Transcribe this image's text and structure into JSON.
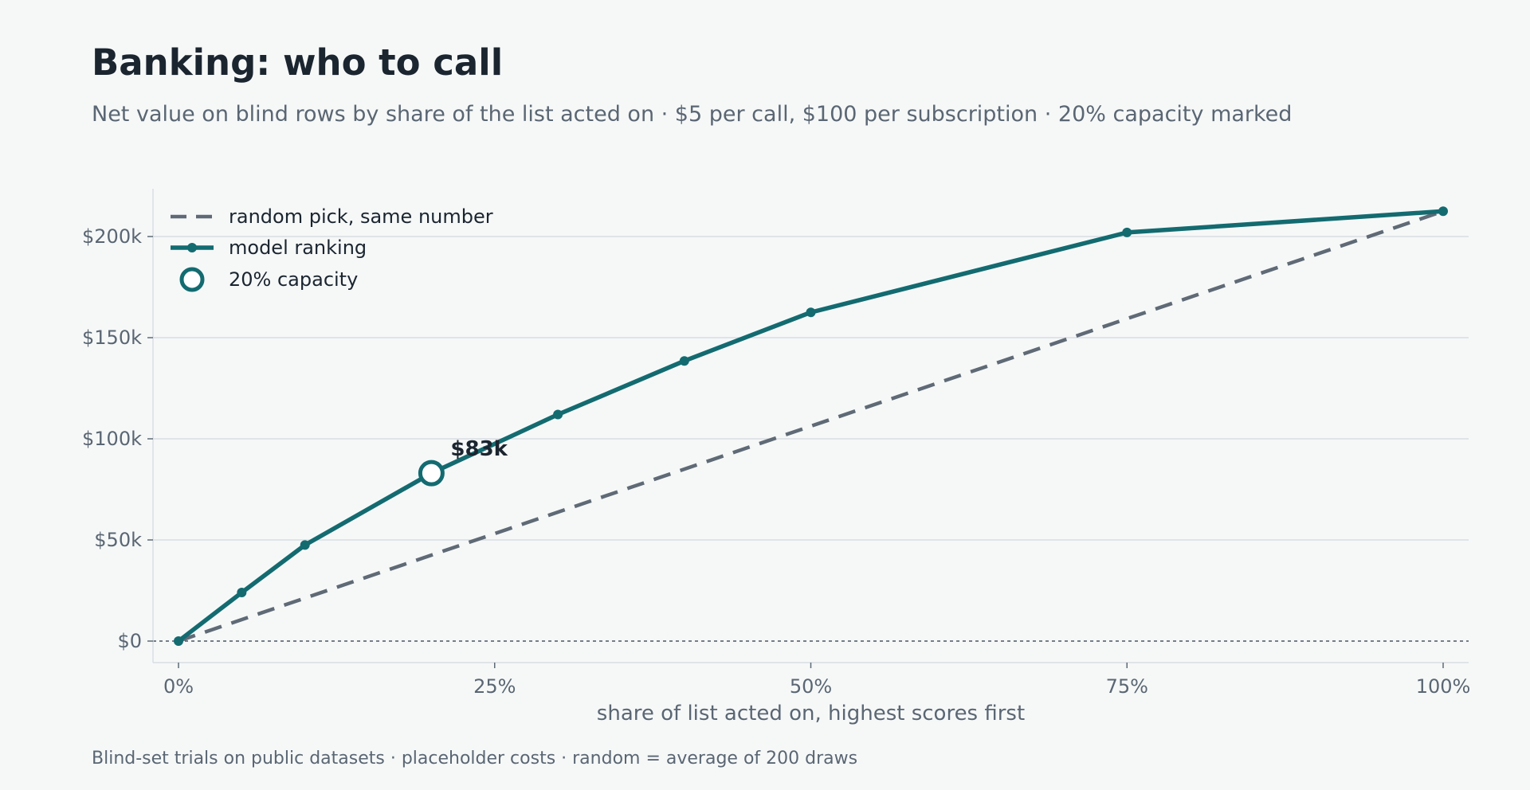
{
  "title": "Banking: who to call",
  "subtitle": "Net value on blind rows by share of the list acted on · $5 per call, $100 per subscription · 20% capacity marked",
  "footnote": "Blind-set trials on public datasets · placeholder costs · random = average of 200 draws",
  "colors": {
    "model": "#136b70",
    "random": "#5f6a76",
    "grid": "#d9dee2",
    "zero_line": "#4a5663"
  },
  "chart_data": {
    "type": "line",
    "xlabel": "share of list acted on, highest scores first",
    "ylabel": "",
    "xlim": [
      0,
      100
    ],
    "ylim": [
      -10000,
      222000
    ],
    "x_ticks": [
      0,
      25,
      50,
      75,
      100
    ],
    "x_tick_labels": [
      "0%",
      "25%",
      "50%",
      "75%",
      "100%"
    ],
    "y_ticks": [
      0,
      50000,
      100000,
      150000,
      200000
    ],
    "y_tick_labels": [
      "$0",
      "$50k",
      "$100k",
      "$150k",
      "$200k"
    ],
    "grid": "horizontal",
    "legend_placement": "top-left",
    "series": [
      {
        "name": "random pick, same number",
        "style": "dashed",
        "x": [
          0,
          100
        ],
        "y": [
          0,
          212500
        ]
      },
      {
        "name": "model ranking",
        "style": "solid-markers",
        "x": [
          0,
          5,
          10,
          20,
          30,
          40,
          50,
          75,
          100
        ],
        "y": [
          0,
          24000,
          47500,
          83000,
          112000,
          138500,
          162500,
          202000,
          212500
        ]
      }
    ],
    "highlight": {
      "name": "20% capacity",
      "x": 20,
      "y": 83000,
      "label": "$83k"
    }
  }
}
